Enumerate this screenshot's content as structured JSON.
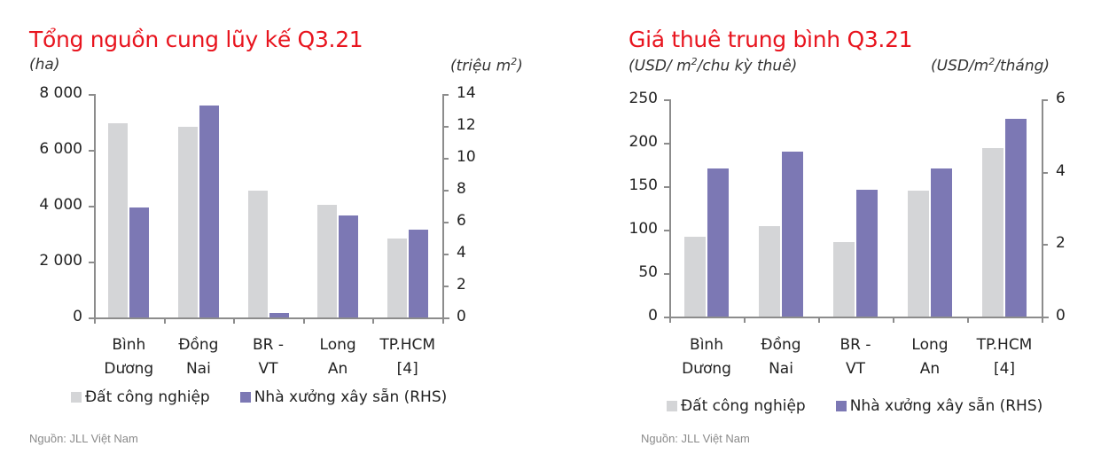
{
  "colors": {
    "title": "#e8141e",
    "grey_series": "#d4d5d7",
    "purple_series": "#7c78b4",
    "axis": "#8c8c8c"
  },
  "chart_data": [
    {
      "type": "bar",
      "title": "Tổng nguồn cung lũy kế Q3.21",
      "ylabel": "(ha)",
      "ylabel_right": "(triệu m²)",
      "ylabel_right_base": "(triệu m",
      "ylabel_right_sup": "2",
      "ylabel_right_end": ")",
      "categories": [
        "Bình Dương",
        "Đồng Nai",
        "BR - VT",
        "Long An",
        "TP.HCM [4]"
      ],
      "category_lines": [
        [
          "Bình",
          "Dương"
        ],
        [
          "Đồng",
          "Nai"
        ],
        [
          "BR -",
          "VT"
        ],
        [
          "Long",
          "An"
        ],
        [
          "TP.HCM",
          "[4]"
        ]
      ],
      "series": [
        {
          "name": "Đất công nghiệp",
          "axis": "left",
          "values": [
            6950,
            6820,
            4540,
            4030,
            2820
          ]
        },
        {
          "name": "Nhà xưởng xây sẵn (RHS)",
          "axis": "right",
          "values": [
            6.9,
            13.3,
            0.3,
            6.4,
            5.5
          ]
        }
      ],
      "ylim": [
        0,
        8000
      ],
      "ylim_right": [
        0,
        14
      ],
      "yticks": [
        "0",
        "2 000",
        "4 000",
        "6 000",
        "8 000"
      ],
      "yticks_right": [
        "0",
        "2",
        "4",
        "6",
        "8",
        "10",
        "12",
        "14"
      ],
      "grid": false,
      "legend_position": "bottom",
      "source": "Nguồn: JLL Việt Nam"
    },
    {
      "type": "bar",
      "title": "Giá thuê trung bình Q3.21",
      "ylabel": "(USD/ m²/chu kỳ thuê)",
      "ylabel_base": "(USD/ m",
      "ylabel_sup": "2",
      "ylabel_end": "/chu kỳ thuê)",
      "ylabel_right": "(USD/m²/tháng)",
      "ylabel_right_base": "(USD/m",
      "ylabel_right_sup": "2",
      "ylabel_right_end": "/tháng)",
      "categories": [
        "Bình Dương",
        "Đồng Nai",
        "BR - VT",
        "Long An",
        "TP.HCM [4]"
      ],
      "category_lines": [
        [
          "Bình",
          "Dương"
        ],
        [
          "Đồng",
          "Nai"
        ],
        [
          "BR -",
          "VT"
        ],
        [
          "Long",
          "An"
        ],
        [
          "TP.HCM",
          "[4]"
        ]
      ],
      "series": [
        {
          "name": "Đất công nghiệp",
          "axis": "left",
          "values": [
            92,
            104,
            86,
            145,
            194
          ]
        },
        {
          "name": "Nhà xưởng xây sẵn (RHS)",
          "axis": "right",
          "values": [
            4.1,
            4.55,
            3.5,
            4.1,
            5.45
          ]
        }
      ],
      "ylim": [
        0,
        250
      ],
      "ylim_right": [
        0,
        6
      ],
      "yticks": [
        "0",
        "50",
        "100",
        "150",
        "200",
        "250"
      ],
      "yticks_right": [
        "0",
        "2",
        "4",
        "6"
      ],
      "grid": false,
      "legend_position": "bottom",
      "source": "Nguồn: JLL Việt Nam"
    }
  ]
}
